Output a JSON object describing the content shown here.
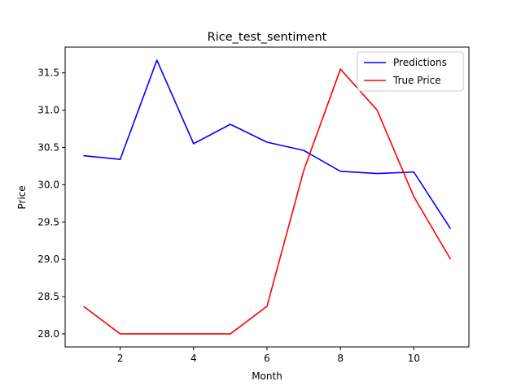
{
  "chart_data": {
    "type": "line",
    "title": "Rice_test_sentiment",
    "xlabel": "Month",
    "ylabel": "Price",
    "x": [
      1,
      2,
      3,
      4,
      5,
      6,
      7,
      8,
      9,
      10,
      11
    ],
    "xlim": [
      0.5,
      11.5
    ],
    "ylim": [
      27.825,
      31.845
    ],
    "xticks": [
      2,
      4,
      6,
      8,
      10
    ],
    "yticks": [
      28.0,
      28.5,
      29.0,
      29.5,
      30.0,
      30.5,
      31.0,
      31.5
    ],
    "ytick_labels": [
      "28.0",
      "28.5",
      "29.0",
      "29.5",
      "30.0",
      "30.5",
      "31.0",
      "31.5"
    ],
    "grid": false,
    "legend_position": "top-right",
    "series": [
      {
        "name": "Predictions",
        "color": "#0000ff",
        "values": [
          30.39,
          30.34,
          31.67,
          30.55,
          30.81,
          30.57,
          30.46,
          30.18,
          30.15,
          30.17,
          29.41
        ]
      },
      {
        "name": "True Price",
        "color": "#ff0000",
        "values": [
          28.37,
          28.0,
          28.0,
          28.0,
          28.0,
          28.37,
          30.19,
          31.55,
          31.0,
          29.84,
          29.0
        ]
      }
    ]
  }
}
